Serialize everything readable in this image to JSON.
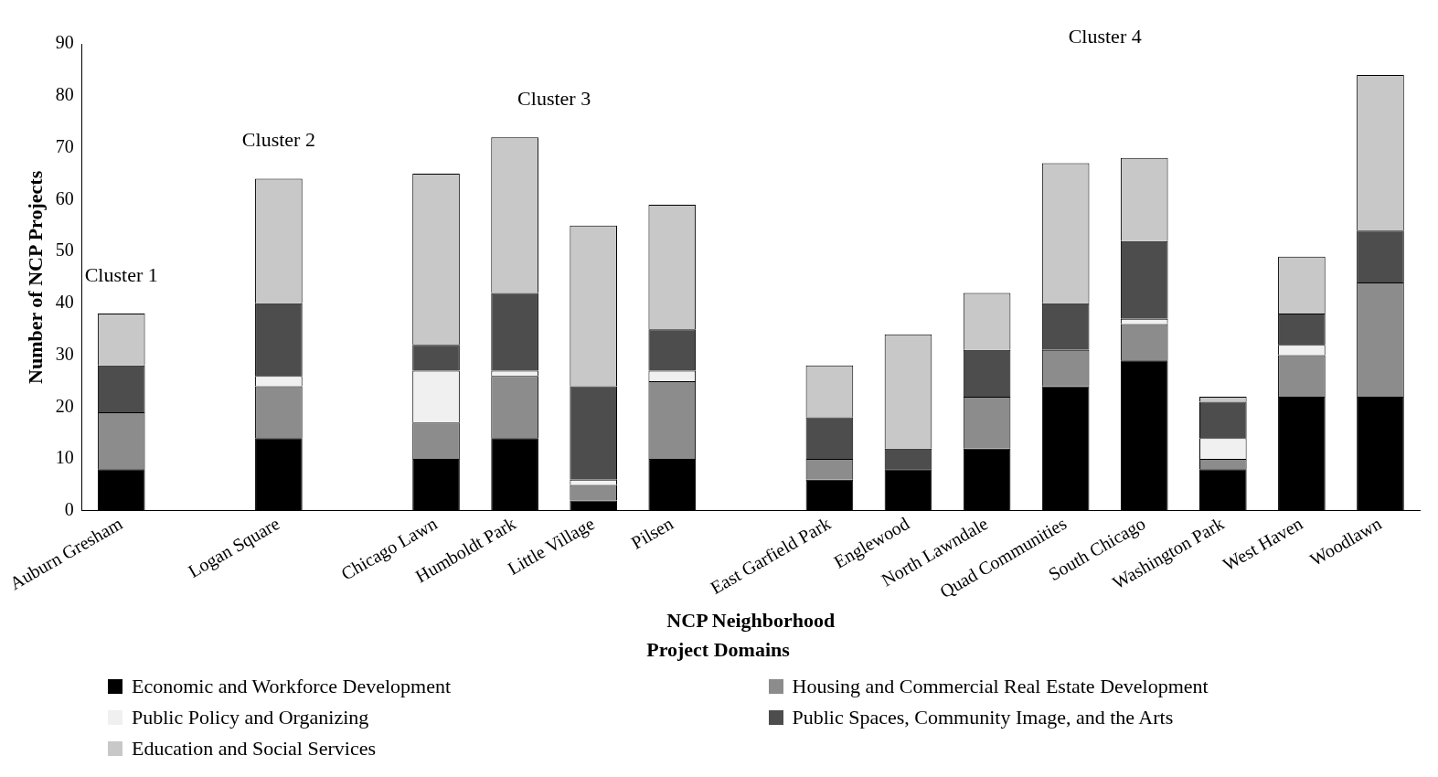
{
  "chart_data": {
    "type": "bar",
    "stacked": true,
    "categories": [
      "Auburn Gresham",
      null,
      "Logan Square",
      null,
      "Chicago Lawn",
      "Humboldt Park",
      "Little Village",
      "Pilsen",
      null,
      "East Garfield Park",
      "Englewood",
      "North Lawndale",
      "Quad Communities",
      "South Chicago",
      "Washington Park",
      "West Haven",
      "Woodlawn"
    ],
    "series": [
      {
        "name": "Economic and Workforce Development",
        "color": "#000000",
        "values": [
          8,
          null,
          14,
          null,
          10,
          14,
          2,
          10,
          null,
          6,
          8,
          12,
          24,
          29,
          8,
          22,
          22
        ]
      },
      {
        "name": "Housing and Commercial Real Estate Development",
        "color": "#8c8c8c",
        "values": [
          11,
          null,
          10,
          null,
          7,
          12,
          3,
          15,
          null,
          4,
          0,
          10,
          7,
          7,
          2,
          8,
          22
        ]
      },
      {
        "name": "Public Policy and Organizing",
        "color": "#f0f0f0",
        "values": [
          0,
          null,
          2,
          null,
          10,
          1,
          1,
          2,
          null,
          0,
          0,
          0,
          0,
          1,
          4,
          2,
          0
        ]
      },
      {
        "name": "Public Spaces, Community Image, and the Arts",
        "color": "#4d4d4d",
        "values": [
          9,
          null,
          14,
          null,
          5,
          15,
          18,
          8,
          null,
          8,
          4,
          9,
          9,
          15,
          7,
          6,
          10
        ]
      },
      {
        "name": "Education and Social Services",
        "color": "#c8c8c8",
        "values": [
          10,
          null,
          24,
          null,
          33,
          30,
          31,
          24,
          null,
          10,
          22,
          11,
          27,
          16,
          1,
          11,
          30
        ]
      }
    ],
    "xlabel": "NCP Neighborhood",
    "ylabel": "Number of NCP Projects",
    "legend_title": "Project Domains",
    "legend": "bottom",
    "ylim": [
      0,
      90
    ],
    "yticks": [
      0,
      10,
      20,
      30,
      40,
      50,
      60,
      70,
      80,
      90
    ],
    "grid": false,
    "annotations": [
      "Cluster 1",
      "Cluster 2",
      "Cluster 3",
      "Cluster 4"
    ]
  }
}
